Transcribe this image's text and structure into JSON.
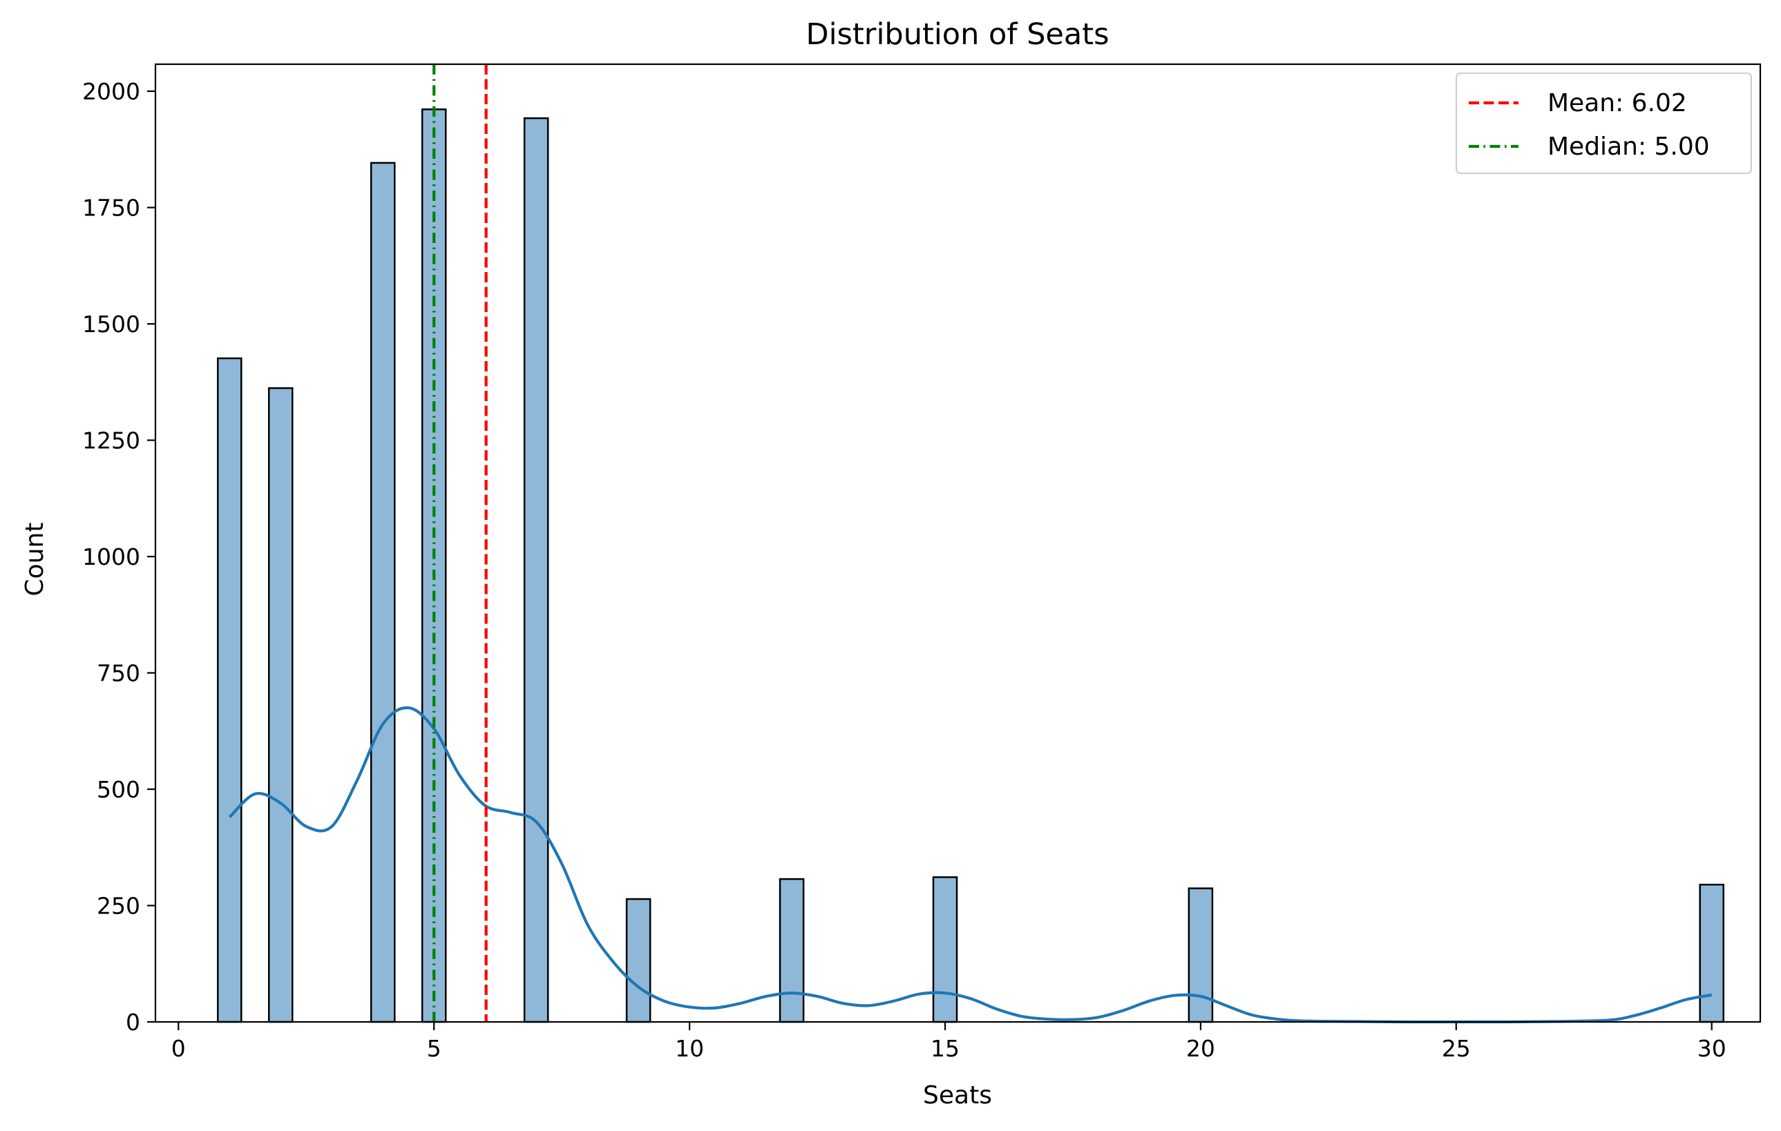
{
  "chart_data": {
    "type": "bar",
    "title": "Distribution of Seats",
    "xlabel": "Seats",
    "ylabel": "Count",
    "xlim": [
      -0.45,
      30.95
    ],
    "ylim": [
      0,
      2058
    ],
    "xticks": [
      0,
      5,
      10,
      15,
      20,
      25,
      30
    ],
    "yticks": [
      0,
      250,
      500,
      750,
      1000,
      1250,
      1500,
      1750,
      2000
    ],
    "bin_width": 0.4603,
    "grid": false,
    "legend_position": "top-right",
    "bins": [
      {
        "x": 1.0,
        "count": 1426
      },
      {
        "x": 2.0,
        "count": 1362
      },
      {
        "x": 4.0,
        "count": 1846
      },
      {
        "x": 5.0,
        "count": 1961
      },
      {
        "x": 7.0,
        "count": 1942
      },
      {
        "x": 9.0,
        "count": 264
      },
      {
        "x": 12.0,
        "count": 307
      },
      {
        "x": 15.0,
        "count": 311
      },
      {
        "x": 20.0,
        "count": 287
      },
      {
        "x": 30.0,
        "count": 295
      }
    ],
    "kde": {
      "x": [
        1.0,
        1.5,
        2.0,
        2.5,
        3.0,
        3.5,
        4.0,
        4.5,
        5.0,
        5.5,
        6.0,
        6.5,
        7.0,
        7.5,
        8.0,
        8.5,
        9.0,
        9.5,
        10.0,
        10.5,
        11.0,
        11.5,
        12.0,
        12.5,
        13.0,
        13.5,
        14.0,
        14.5,
        15.0,
        15.5,
        16.0,
        16.5,
        17.0,
        17.5,
        18.0,
        18.5,
        19.0,
        19.5,
        20.0,
        20.5,
        21.0,
        21.5,
        22.0,
        23.0,
        24.0,
        25.0,
        26.0,
        27.0,
        28.0,
        28.5,
        29.0,
        29.5,
        30.0
      ],
      "y": [
        440,
        490,
        470,
        420,
        420,
        520,
        640,
        675,
        630,
        530,
        465,
        450,
        430,
        340,
        210,
        130,
        75,
        45,
        32,
        30,
        40,
        55,
        62,
        55,
        40,
        35,
        45,
        60,
        62,
        50,
        28,
        12,
        6,
        5,
        10,
        25,
        45,
        57,
        55,
        35,
        15,
        6,
        2,
        1,
        0,
        0,
        0,
        1,
        4,
        14,
        30,
        48,
        58
      ]
    },
    "series": [
      {
        "name": "Mean: 6.02",
        "type": "vline",
        "x": 6.02,
        "color": "#ff0000",
        "style": "dashed"
      },
      {
        "name": "Median: 5.00",
        "type": "vline",
        "x": 5.0,
        "color": "#008000",
        "style": "dashdot"
      }
    ],
    "colors": {
      "bar_fill": "#8fb8d8",
      "bar_edge": "#000000",
      "kde_line": "#1f77b4"
    }
  }
}
